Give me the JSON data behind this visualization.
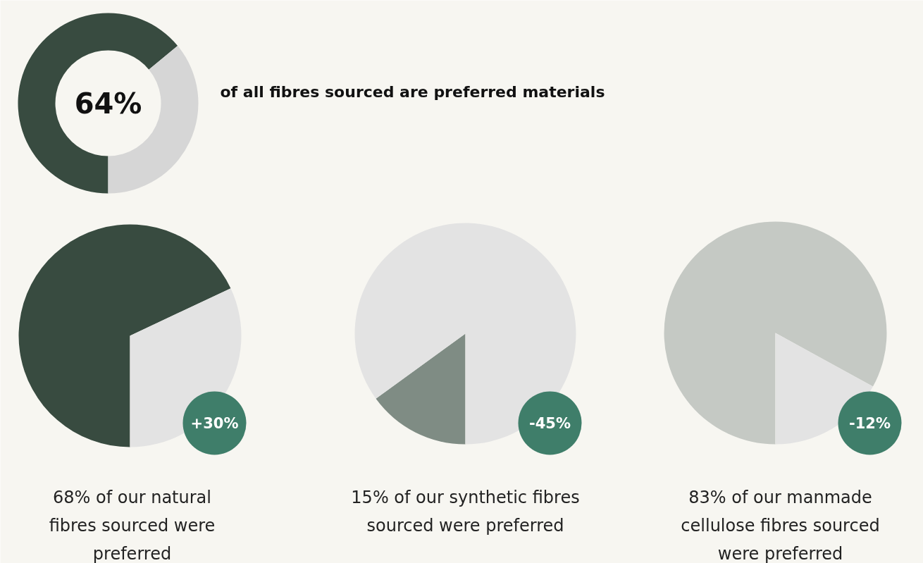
{
  "chart_data": [
    {
      "type": "donut",
      "categories": [
        null,
        null
      ],
      "values": [
        64,
        36
      ],
      "colors": [
        "#384b40",
        "#d6d6d6"
      ],
      "title": "of all fibres sourced are preferred materials",
      "annotations": [
        "64%"
      ]
    },
    {
      "type": "pie",
      "categories": [
        null,
        null
      ],
      "values": [
        68,
        32
      ],
      "colors": [
        "#384b40",
        "#e3e3e3"
      ],
      "title": "68% of our natural fibres sourced were preferred",
      "annotations": [
        "+30%"
      ]
    },
    {
      "type": "pie",
      "categories": [
        null,
        null
      ],
      "values": [
        15,
        85
      ],
      "colors": [
        "#7f8c84",
        "#e3e3e3"
      ],
      "title": "15% of our synthetic fibres sourced were preferred",
      "annotations": [
        "-45%"
      ]
    },
    {
      "type": "pie",
      "categories": [
        null,
        null
      ],
      "values": [
        83,
        17
      ],
      "colors": [
        "#c5c9c4",
        "#e3e3e3"
      ],
      "title": "83% of our manmade cellulose fibres sourced were preferred",
      "annotations": [
        "-12%"
      ]
    }
  ]
}
